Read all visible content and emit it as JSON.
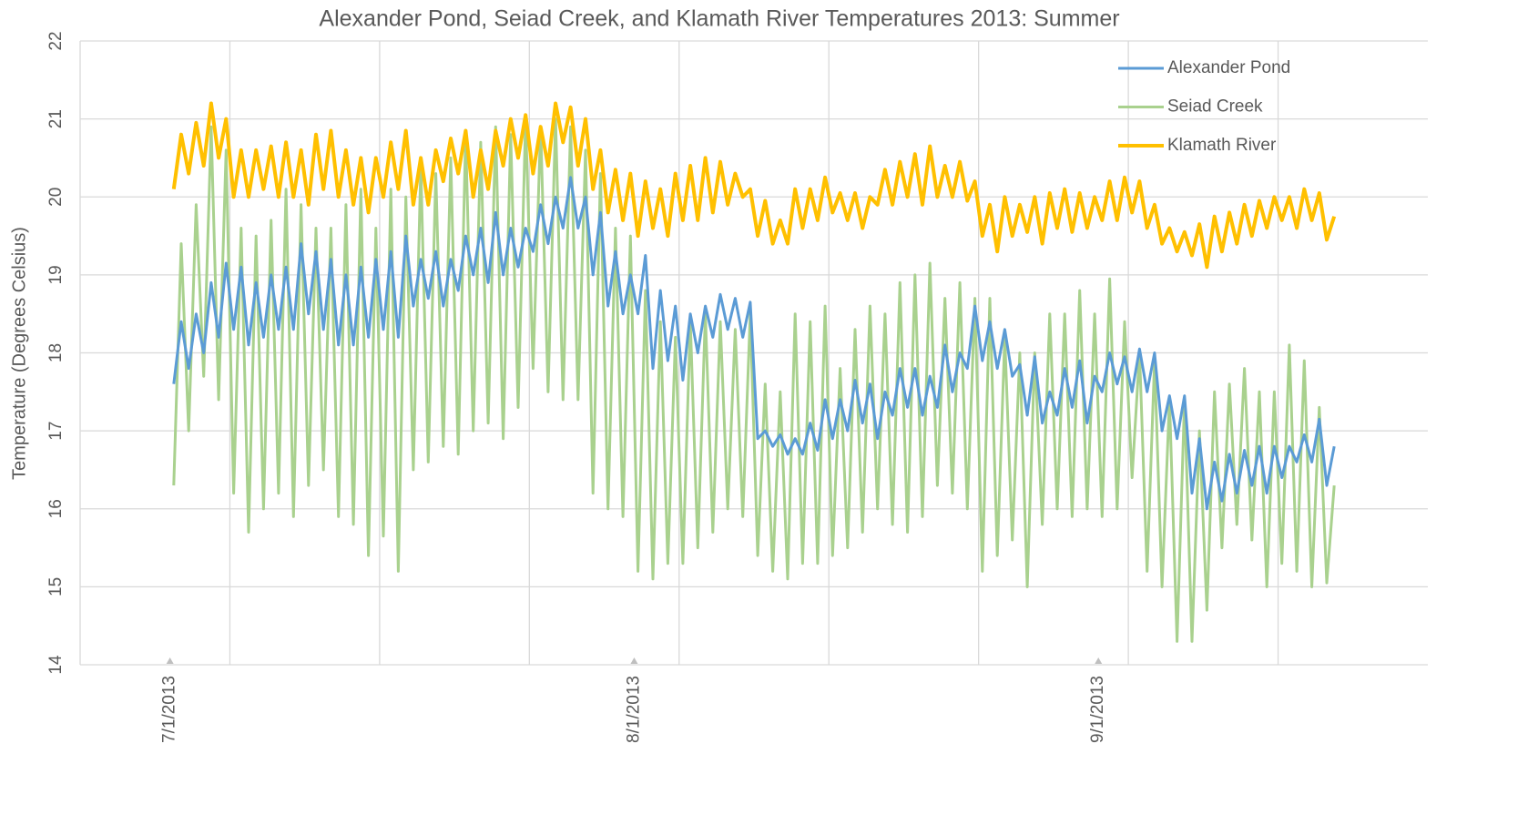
{
  "chart_data": {
    "type": "line",
    "title": "Alexander Pond, Seiad Creek, and Klamath River Temperatures 2013: Summer",
    "y_label": "Temperature (Degrees Celsius)",
    "xlim": [
      "2013-06-25T00:00",
      "2013-09-23T00:00"
    ],
    "xticks": [
      {
        "value": "2013-07-01T00:00",
        "label": "7/1/2013"
      },
      {
        "value": "2013-08-01T00:00",
        "label": "8/1/2013"
      },
      {
        "value": "2013-09-01T00:00",
        "label": "9/1/2013"
      }
    ],
    "xgrid": [
      "2013-07-05T00:00",
      "2013-07-15T00:00",
      "2013-07-25T00:00",
      "2013-08-04T00:00",
      "2013-08-14T00:00",
      "2013-08-24T00:00",
      "2013-09-03T00:00",
      "2013-09-13T00:00"
    ],
    "ylim": [
      14,
      22
    ],
    "yticks": [
      14,
      15,
      16,
      17,
      18,
      19,
      20,
      21,
      22
    ],
    "grid": true,
    "legend": "upper-right",
    "x": [
      "2013-07-01T06:00",
      "2013-07-01T18:00",
      "2013-07-02T06:00",
      "2013-07-02T18:00",
      "2013-07-03T06:00",
      "2013-07-03T18:00",
      "2013-07-04T06:00",
      "2013-07-04T18:00",
      "2013-07-05T06:00",
      "2013-07-05T18:00",
      "2013-07-06T06:00",
      "2013-07-06T18:00",
      "2013-07-07T06:00",
      "2013-07-07T18:00",
      "2013-07-08T06:00",
      "2013-07-08T18:00",
      "2013-07-09T06:00",
      "2013-07-09T18:00",
      "2013-07-10T06:00",
      "2013-07-10T18:00",
      "2013-07-11T06:00",
      "2013-07-11T18:00",
      "2013-07-12T06:00",
      "2013-07-12T18:00",
      "2013-07-13T06:00",
      "2013-07-13T18:00",
      "2013-07-14T06:00",
      "2013-07-14T18:00",
      "2013-07-15T06:00",
      "2013-07-15T18:00",
      "2013-07-16T06:00",
      "2013-07-16T18:00",
      "2013-07-17T06:00",
      "2013-07-17T18:00",
      "2013-07-18T06:00",
      "2013-07-18T18:00",
      "2013-07-19T06:00",
      "2013-07-19T18:00",
      "2013-07-20T06:00",
      "2013-07-20T18:00",
      "2013-07-21T06:00",
      "2013-07-21T18:00",
      "2013-07-22T06:00",
      "2013-07-22T18:00",
      "2013-07-23T06:00",
      "2013-07-23T18:00",
      "2013-07-24T06:00",
      "2013-07-24T18:00",
      "2013-07-25T06:00",
      "2013-07-25T18:00",
      "2013-07-26T06:00",
      "2013-07-26T18:00",
      "2013-07-27T06:00",
      "2013-07-27T18:00",
      "2013-07-28T06:00",
      "2013-07-28T18:00",
      "2013-07-29T06:00",
      "2013-07-29T18:00",
      "2013-07-30T06:00",
      "2013-07-30T18:00",
      "2013-07-31T06:00",
      "2013-07-31T18:00",
      "2013-08-01T06:00",
      "2013-08-01T18:00",
      "2013-08-02T06:00",
      "2013-08-02T18:00",
      "2013-08-03T06:00",
      "2013-08-03T18:00",
      "2013-08-04T06:00",
      "2013-08-04T18:00",
      "2013-08-05T06:00",
      "2013-08-05T18:00",
      "2013-08-06T06:00",
      "2013-08-06T18:00",
      "2013-08-07T06:00",
      "2013-08-07T18:00",
      "2013-08-08T06:00",
      "2013-08-08T18:00",
      "2013-08-09T06:00",
      "2013-08-09T18:00",
      "2013-08-10T06:00",
      "2013-08-10T18:00",
      "2013-08-11T06:00",
      "2013-08-11T18:00",
      "2013-08-12T06:00",
      "2013-08-12T18:00",
      "2013-08-13T06:00",
      "2013-08-13T18:00",
      "2013-08-14T06:00",
      "2013-08-14T18:00",
      "2013-08-15T06:00",
      "2013-08-15T18:00",
      "2013-08-16T06:00",
      "2013-08-16T18:00",
      "2013-08-17T06:00",
      "2013-08-17T18:00",
      "2013-08-18T06:00",
      "2013-08-18T18:00",
      "2013-08-19T06:00",
      "2013-08-19T18:00",
      "2013-08-20T06:00",
      "2013-08-20T18:00",
      "2013-08-21T06:00",
      "2013-08-21T18:00",
      "2013-08-22T06:00",
      "2013-08-22T18:00",
      "2013-08-23T06:00",
      "2013-08-23T18:00",
      "2013-08-24T06:00",
      "2013-08-24T18:00",
      "2013-08-25T06:00",
      "2013-08-25T18:00",
      "2013-08-26T06:00",
      "2013-08-26T18:00",
      "2013-08-27T06:00",
      "2013-08-27T18:00",
      "2013-08-28T06:00",
      "2013-08-28T18:00",
      "2013-08-29T06:00",
      "2013-08-29T18:00",
      "2013-08-30T06:00",
      "2013-08-30T18:00",
      "2013-08-31T06:00",
      "2013-08-31T18:00",
      "2013-09-01T06:00",
      "2013-09-01T18:00",
      "2013-09-02T06:00",
      "2013-09-02T18:00",
      "2013-09-03T06:00",
      "2013-09-03T18:00",
      "2013-09-04T06:00",
      "2013-09-04T18:00",
      "2013-09-05T06:00",
      "2013-09-05T18:00",
      "2013-09-06T06:00",
      "2013-09-06T18:00",
      "2013-09-07T06:00",
      "2013-09-07T18:00",
      "2013-09-08T06:00",
      "2013-09-08T18:00",
      "2013-09-09T06:00",
      "2013-09-09T18:00",
      "2013-09-10T06:00",
      "2013-09-10T18:00",
      "2013-09-11T06:00",
      "2013-09-11T18:00",
      "2013-09-12T06:00",
      "2013-09-12T18:00",
      "2013-09-13T06:00",
      "2013-09-13T18:00",
      "2013-09-14T06:00",
      "2013-09-14T18:00",
      "2013-09-15T06:00",
      "2013-09-15T18:00",
      "2013-09-16T06:00",
      "2013-09-16T18:00"
    ],
    "series": [
      {
        "name": "Alexander Pond",
        "color": "#5b9bd5",
        "values": [
          17.6,
          18.4,
          17.8,
          18.5,
          18.0,
          18.9,
          18.2,
          19.15,
          18.3,
          19.1,
          18.1,
          18.9,
          18.2,
          19.0,
          18.3,
          19.1,
          18.3,
          19.4,
          18.5,
          19.3,
          18.3,
          19.2,
          18.1,
          19.0,
          18.1,
          19.1,
          18.2,
          19.2,
          18.3,
          19.3,
          18.2,
          19.5,
          18.6,
          19.2,
          18.7,
          19.3,
          18.6,
          19.2,
          18.8,
          19.5,
          19.0,
          19.6,
          18.9,
          19.8,
          19.0,
          19.6,
          19.1,
          19.6,
          19.3,
          19.9,
          19.4,
          20.0,
          19.6,
          20.25,
          19.6,
          20.0,
          19.0,
          19.8,
          18.6,
          19.3,
          18.5,
          19.0,
          18.5,
          19.25,
          17.8,
          18.8,
          17.9,
          18.6,
          17.65,
          18.5,
          18.0,
          18.6,
          18.2,
          18.75,
          18.3,
          18.7,
          18.2,
          18.65,
          16.9,
          17.0,
          16.8,
          16.95,
          16.7,
          16.9,
          16.7,
          17.1,
          16.75,
          17.4,
          16.9,
          17.4,
          17.0,
          17.65,
          17.1,
          17.6,
          16.9,
          17.5,
          17.2,
          17.8,
          17.3,
          17.8,
          17.2,
          17.7,
          17.3,
          18.1,
          17.5,
          18.0,
          17.8,
          18.6,
          17.9,
          18.4,
          17.8,
          18.3,
          17.7,
          17.85,
          17.2,
          17.95,
          17.1,
          17.5,
          17.2,
          17.8,
          17.3,
          17.9,
          17.1,
          17.7,
          17.5,
          18.0,
          17.6,
          17.95,
          17.5,
          18.05,
          17.5,
          18.0,
          17.0,
          17.45,
          16.9,
          17.45,
          16.2,
          16.9,
          16.0,
          16.6,
          16.1,
          16.7,
          16.2,
          16.75,
          16.3,
          16.8,
          16.2,
          16.8,
          16.4,
          16.8,
          16.6,
          16.95,
          16.6,
          17.15,
          16.3,
          16.8
        ]
      },
      {
        "name": "Seiad Creek",
        "color": "#a9d18e",
        "values": [
          16.3,
          19.4,
          17.0,
          19.9,
          17.7,
          20.9,
          17.4,
          20.6,
          16.2,
          19.6,
          15.7,
          19.5,
          16.0,
          19.7,
          16.2,
          20.1,
          15.9,
          19.9,
          16.3,
          19.6,
          16.5,
          19.6,
          15.9,
          19.9,
          15.8,
          20.1,
          15.4,
          19.6,
          15.65,
          20.1,
          15.2,
          20.0,
          16.5,
          20.4,
          16.6,
          20.3,
          16.8,
          20.5,
          16.7,
          20.8,
          17.0,
          20.7,
          17.1,
          20.9,
          16.9,
          20.8,
          17.3,
          21.0,
          17.8,
          20.9,
          17.5,
          21.0,
          17.4,
          20.9,
          17.4,
          20.6,
          16.2,
          20.3,
          16.0,
          19.6,
          15.9,
          19.5,
          15.2,
          18.8,
          15.1,
          18.4,
          15.3,
          18.2,
          15.3,
          18.4,
          15.5,
          18.5,
          15.7,
          18.4,
          16.0,
          18.3,
          15.9,
          18.5,
          15.4,
          17.6,
          15.2,
          17.5,
          15.1,
          18.5,
          15.3,
          18.4,
          15.3,
          18.6,
          15.4,
          17.8,
          15.5,
          18.3,
          15.7,
          18.6,
          16.0,
          18.5,
          15.8,
          18.9,
          15.7,
          19.0,
          15.9,
          19.15,
          16.3,
          18.7,
          16.2,
          18.9,
          16.0,
          18.7,
          15.2,
          18.7,
          15.4,
          18.2,
          15.6,
          18.0,
          15.0,
          18.0,
          15.8,
          18.5,
          16.0,
          18.5,
          15.9,
          18.8,
          16.0,
          18.5,
          15.9,
          18.95,
          16.0,
          18.4,
          16.4,
          18.0,
          15.2,
          17.9,
          15.0,
          17.4,
          14.3,
          17.4,
          14.3,
          17.0,
          14.7,
          17.5,
          15.5,
          17.6,
          15.8,
          17.8,
          15.6,
          17.5,
          15.0,
          17.5,
          15.3,
          18.1,
          15.2,
          17.9,
          15.0,
          17.3,
          15.05,
          16.3
        ]
      },
      {
        "name": "Klamath River",
        "color": "#ffc000",
        "values": [
          20.1,
          20.8,
          20.3,
          20.95,
          20.4,
          21.2,
          20.5,
          21.0,
          20.0,
          20.6,
          20.0,
          20.6,
          20.1,
          20.65,
          20.0,
          20.7,
          20.0,
          20.6,
          19.9,
          20.8,
          20.1,
          20.85,
          20.0,
          20.6,
          19.9,
          20.5,
          19.8,
          20.5,
          20.0,
          20.7,
          20.1,
          20.85,
          19.9,
          20.5,
          19.9,
          20.6,
          20.2,
          20.75,
          20.3,
          20.85,
          20.0,
          20.6,
          20.1,
          20.85,
          20.4,
          21.0,
          20.5,
          21.05,
          20.3,
          20.9,
          20.4,
          21.2,
          20.7,
          21.15,
          20.4,
          21.0,
          20.1,
          20.6,
          19.8,
          20.35,
          19.7,
          20.3,
          19.5,
          20.2,
          19.6,
          20.1,
          19.5,
          20.3,
          19.7,
          20.4,
          19.7,
          20.5,
          19.8,
          20.45,
          19.9,
          20.3,
          20.0,
          20.1,
          19.5,
          19.95,
          19.4,
          19.7,
          19.4,
          20.1,
          19.6,
          20.1,
          19.7,
          20.25,
          19.8,
          20.05,
          19.7,
          20.05,
          19.6,
          20.0,
          19.9,
          20.35,
          19.9,
          20.45,
          20.0,
          20.55,
          19.9,
          20.65,
          20.0,
          20.4,
          20.0,
          20.45,
          19.95,
          20.2,
          19.5,
          19.9,
          19.3,
          20.0,
          19.5,
          19.9,
          19.55,
          20.0,
          19.4,
          20.05,
          19.6,
          20.1,
          19.55,
          20.05,
          19.6,
          20.0,
          19.7,
          20.2,
          19.7,
          20.25,
          19.8,
          20.2,
          19.6,
          19.9,
          19.4,
          19.6,
          19.3,
          19.55,
          19.25,
          19.65,
          19.1,
          19.75,
          19.3,
          19.8,
          19.4,
          19.9,
          19.5,
          19.95,
          19.6,
          20.0,
          19.7,
          20.0,
          19.6,
          20.1,
          19.7,
          20.05,
          19.45,
          19.75
        ]
      }
    ]
  }
}
